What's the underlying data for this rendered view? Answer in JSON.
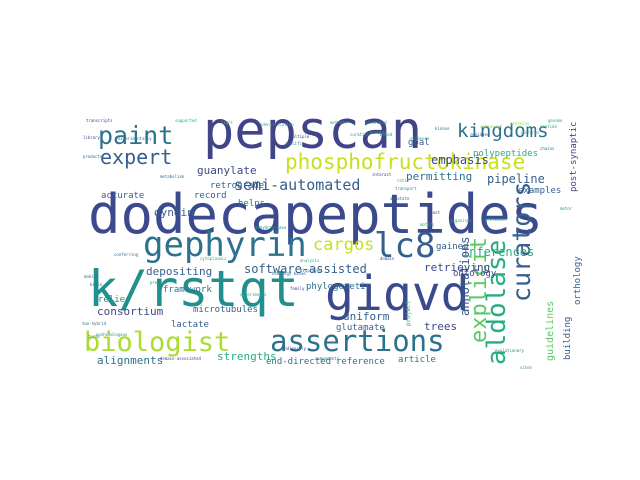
{
  "palette": {
    "navy": "#3b4a8c",
    "indigo": "#3f4788",
    "slate": "#414487",
    "blue": "#355f8d",
    "steel": "#2c728e",
    "teal": "#21908d",
    "sea": "#27ad81",
    "green": "#5cc863",
    "lime": "#90d743",
    "yellowgreen": "#aadc32",
    "yellow": "#c8e020",
    "purple": "#482475",
    "darkpurple": "#440154"
  },
  "words": [
    {
      "text": "pepscan",
      "color": "slate"
    },
    {
      "text": "dodecapeptides",
      "color": "navy"
    },
    {
      "text": "k/rstqt",
      "color": "teal"
    },
    {
      "text": "giqvd",
      "color": "navy"
    },
    {
      "text": "gephyrin",
      "color": "steel"
    },
    {
      "text": "paint",
      "color": "steel"
    },
    {
      "text": "lc8",
      "color": "blue"
    },
    {
      "text": "biologist",
      "color": "yellowgreen"
    },
    {
      "text": "assertions",
      "color": "steel"
    },
    {
      "text": "kingdoms",
      "color": "steel"
    },
    {
      "text": "expert",
      "color": "blue"
    },
    {
      "text": "phosphofructokinase",
      "color": "yellow"
    },
    {
      "text": "curators",
      "color": "blue"
    },
    {
      "text": "aldolase",
      "color": "sea"
    },
    {
      "text": "explicit",
      "color": "green"
    },
    {
      "text": "cargos",
      "color": "yellow"
    },
    {
      "text": "semi-automated",
      "color": "blue"
    },
    {
      "text": "software-assisted",
      "color": "blue"
    },
    {
      "text": "guanylate",
      "color": "indigo"
    },
    {
      "text": "dynein",
      "color": "blue"
    },
    {
      "text": "retrograde",
      "color": "blue"
    },
    {
      "text": "record",
      "color": "blue"
    },
    {
      "text": "helps",
      "color": "steel"
    },
    {
      "text": "accurate",
      "color": "blue"
    },
    {
      "text": "permitting",
      "color": "steel"
    },
    {
      "text": "emphasis",
      "color": "indigo"
    },
    {
      "text": "pipeline",
      "color": "blue"
    },
    {
      "text": "inferences",
      "color": "sea"
    },
    {
      "text": "annotations",
      "color": "blue"
    },
    {
      "text": "gained",
      "color": "blue"
    },
    {
      "text": "examples",
      "color": "blue"
    },
    {
      "text": "post-synaptic",
      "color": "indigo"
    },
    {
      "text": "polypeptides",
      "color": "sea"
    },
    {
      "text": "goal",
      "color": "blue"
    },
    {
      "text": "ontology",
      "color": "indigo"
    },
    {
      "text": "orthology",
      "color": "blue"
    },
    {
      "text": "building",
      "color": "blue"
    },
    {
      "text": "depositing",
      "color": "blue"
    },
    {
      "text": "framework",
      "color": "steel"
    },
    {
      "text": "retrieving",
      "color": "indigo"
    },
    {
      "text": "phylogenetic",
      "color": "steel"
    },
    {
      "text": "consortium",
      "color": "indigo"
    },
    {
      "text": "microtubules",
      "color": "blue"
    },
    {
      "text": "uniform",
      "color": "blue"
    },
    {
      "text": "trees",
      "color": "indigo"
    },
    {
      "text": "lactate",
      "color": "blue"
    },
    {
      "text": "glutamate",
      "color": "blue"
    },
    {
      "text": "strengths",
      "color": "sea"
    },
    {
      "text": "alignments",
      "color": "steel"
    },
    {
      "text": "relies",
      "color": "teal"
    },
    {
      "text": "guidelines",
      "color": "green"
    },
    {
      "text": "end-directed",
      "color": "steel"
    },
    {
      "text": "reference",
      "color": "steel"
    },
    {
      "text": "article",
      "color": "steel"
    },
    {
      "text": "project",
      "color": "sea"
    },
    {
      "text": "library",
      "color": "indigo"
    },
    {
      "text": "products",
      "color": "steel"
    },
    {
      "text": "cytoplasmic",
      "color": "sea"
    },
    {
      "text": "dehydrogenase",
      "color": "teal"
    },
    {
      "text": "supported",
      "color": "sea"
    },
    {
      "text": "identification",
      "color": "sea"
    },
    {
      "text": "evolutionary",
      "color": "teal"
    },
    {
      "text": "domain-associated",
      "color": "indigo"
    },
    {
      "text": "experimentally",
      "color": "steel"
    },
    {
      "text": "yeast",
      "color": "indigo"
    },
    {
      "text": "motifs",
      "color": "sea"
    },
    {
      "text": "transcripts",
      "color": "indigo"
    },
    {
      "text": "components",
      "color": "steel"
    },
    {
      "text": "analysis",
      "color": "sea"
    },
    {
      "text": "specific",
      "color": "steel"
    },
    {
      "text": "methods",
      "color": "sea"
    },
    {
      "text": "interact",
      "color": "indigo"
    },
    {
      "text": "conserved",
      "color": "lime"
    },
    {
      "text": "proteomic",
      "color": "sea"
    },
    {
      "text": "sites",
      "color": "teal"
    },
    {
      "text": "brain",
      "color": "steel"
    },
    {
      "text": "mobile",
      "color": "steel"
    },
    {
      "text": "precise",
      "color": "teal"
    },
    {
      "text": "isoforms",
      "color": "sea"
    },
    {
      "text": "family",
      "color": "indigo"
    },
    {
      "text": "conferring",
      "color": "steel"
    },
    {
      "text": "terms",
      "color": "teal"
    },
    {
      "text": "light",
      "color": "green"
    },
    {
      "text": "genome",
      "color": "sea"
    },
    {
      "text": "transport",
      "color": "teal"
    },
    {
      "text": "organisms",
      "color": "sea"
    },
    {
      "text": "metabolism",
      "color": "steel"
    },
    {
      "text": "nonhomologous",
      "color": "teal"
    },
    {
      "text": "multiple",
      "color": "indigo"
    },
    {
      "text": "binding",
      "color": "sea"
    },
    {
      "text": "two-hybrid",
      "color": "steel"
    },
    {
      "text": "ratio",
      "color": "sea"
    },
    {
      "text": "based",
      "color": "teal"
    },
    {
      "text": "kinase",
      "color": "steel"
    },
    {
      "text": "domain",
      "color": "indigo"
    },
    {
      "text": "homology-based",
      "color": "steel"
    },
    {
      "text": "indirectly",
      "color": "indigo"
    },
    {
      "text": "evidence",
      "color": "sea"
    },
    {
      "text": "generated",
      "color": "teal"
    },
    {
      "text": "peptide",
      "color": "sea"
    },
    {
      "text": "annotate",
      "color": "steel"
    },
    {
      "text": "residues",
      "color": "indigo"
    },
    {
      "text": "curation",
      "color": "teal"
    },
    {
      "text": "displayed",
      "color": "steel"
    },
    {
      "text": "experiments",
      "color": "sea"
    },
    {
      "text": "proteins",
      "color": "lime"
    },
    {
      "text": "chains",
      "color": "steel"
    },
    {
      "text": "motor",
      "color": "teal"
    }
  ]
}
